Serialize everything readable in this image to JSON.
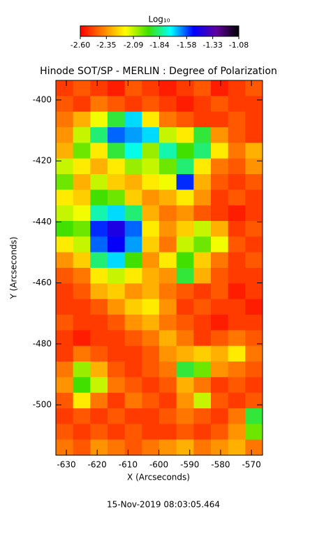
{
  "chart_data": {
    "type": "heatmap",
    "title": "Hinode SOT/SP - MERLIN : Degree of Polarization",
    "x_label": "X (Arcseconds)",
    "y_label": "Y (Arcseconds)",
    "footer": "15-Nov-2019 08:03:05.464",
    "colorbar_title": "Log₁₀",
    "colorscale": [
      "#ff0000",
      "#ff8000",
      "#ffff00",
      "#40e000",
      "#00ffff",
      "#0000ff",
      "#6000a0",
      "#000000"
    ],
    "zlim": [
      -2.6,
      -1.08
    ],
    "zticks": [
      {
        "value": -2.6,
        "label": "-2.60"
      },
      {
        "value": -2.35,
        "label": "-2.35"
      },
      {
        "value": -2.09,
        "label": "-2.09"
      },
      {
        "value": -1.84,
        "label": "-1.84"
      },
      {
        "value": -1.58,
        "label": "-1.58"
      },
      {
        "value": -1.33,
        "label": "-1.33"
      },
      {
        "value": -1.08,
        "label": "-1.08"
      }
    ],
    "xlim": [
      -633.4,
      -566.4
    ],
    "xticks": [
      -630,
      -620,
      -610,
      -600,
      -590,
      -580,
      -570
    ],
    "ylim": [
      -516.5,
      -393.6
    ],
    "yticks": [
      -400,
      -420,
      -440,
      -460,
      -480,
      -500
    ],
    "z": [
      [
        -2.5,
        -2.45,
        -2.5,
        -2.55,
        -2.45,
        -2.5,
        -2.55,
        -2.5,
        -2.45,
        -2.55,
        -2.5,
        -2.45
      ],
      [
        -2.45,
        -2.5,
        -2.4,
        -2.45,
        -2.5,
        -2.45,
        -2.5,
        -2.55,
        -2.5,
        -2.45,
        -2.5,
        -2.5
      ],
      [
        -2.4,
        -2.3,
        -2.15,
        -1.9,
        -1.7,
        -2.2,
        -2.4,
        -2.45,
        -2.5,
        -2.5,
        -2.45,
        -2.5
      ],
      [
        -2.35,
        -2.1,
        -1.85,
        -1.6,
        -1.65,
        -1.7,
        -2.1,
        -2.2,
        -1.9,
        -2.35,
        -2.45,
        -2.5
      ],
      [
        -2.3,
        -2.0,
        -2.2,
        -1.9,
        -1.75,
        -2.05,
        -1.8,
        -1.95,
        -1.85,
        -2.2,
        -2.4,
        -2.3
      ],
      [
        -2.1,
        -2.2,
        -2.3,
        -2.2,
        -2.05,
        -2.1,
        -2.0,
        -1.85,
        -2.2,
        -2.4,
        -2.45,
        -2.35
      ],
      [
        -2.0,
        -2.3,
        -2.1,
        -2.25,
        -2.3,
        -2.2,
        -2.15,
        -1.55,
        -2.3,
        -2.45,
        -2.5,
        -2.45
      ],
      [
        -2.2,
        -2.25,
        -1.95,
        -2.0,
        -2.25,
        -2.35,
        -2.3,
        -2.2,
        -2.35,
        -2.5,
        -2.45,
        -2.5
      ],
      [
        -2.1,
        -2.15,
        -1.8,
        -1.7,
        -1.85,
        -2.3,
        -2.4,
        -2.35,
        -2.45,
        -2.5,
        -2.55,
        -2.5
      ],
      [
        -1.95,
        -2.0,
        -1.55,
        -1.45,
        -1.6,
        -2.2,
        -2.35,
        -2.25,
        -2.1,
        -2.3,
        -2.5,
        -2.45
      ],
      [
        -2.2,
        -2.1,
        -1.6,
        -1.5,
        -1.65,
        -2.25,
        -2.4,
        -2.1,
        -2.0,
        -2.15,
        -2.45,
        -2.5
      ],
      [
        -2.35,
        -2.25,
        -1.85,
        -1.7,
        -1.95,
        -2.35,
        -2.2,
        -1.95,
        -2.25,
        -2.4,
        -2.5,
        -2.45
      ],
      [
        -2.45,
        -2.4,
        -2.2,
        -2.1,
        -2.2,
        -2.3,
        -2.35,
        -1.9,
        -2.3,
        -2.45,
        -2.5,
        -2.5
      ],
      [
        -2.5,
        -2.45,
        -2.3,
        -2.25,
        -2.35,
        -2.3,
        -2.4,
        -2.45,
        -2.5,
        -2.45,
        -2.55,
        -2.5
      ],
      [
        -2.5,
        -2.5,
        -2.45,
        -2.35,
        -2.25,
        -2.2,
        -2.35,
        -2.5,
        -2.45,
        -2.5,
        -2.5,
        -2.55
      ],
      [
        -2.45,
        -2.5,
        -2.5,
        -2.45,
        -2.35,
        -2.3,
        -2.4,
        -2.45,
        -2.5,
        -2.55,
        -2.5,
        -2.5
      ],
      [
        -2.5,
        -2.55,
        -2.5,
        -2.5,
        -2.45,
        -2.4,
        -2.3,
        -2.4,
        -2.5,
        -2.45,
        -2.4,
        -2.45
      ],
      [
        -2.5,
        -2.4,
        -2.45,
        -2.5,
        -2.5,
        -2.45,
        -2.35,
        -2.3,
        -2.25,
        -2.3,
        -2.2,
        -2.4
      ],
      [
        -2.4,
        -2.05,
        -2.3,
        -2.45,
        -2.5,
        -2.45,
        -2.4,
        -1.9,
        -2.0,
        -2.35,
        -2.4,
        -2.45
      ],
      [
        -2.35,
        -1.95,
        -2.1,
        -2.4,
        -2.45,
        -2.5,
        -2.45,
        -2.3,
        -2.4,
        -2.5,
        -2.45,
        -2.5
      ],
      [
        -2.45,
        -2.2,
        -2.4,
        -2.5,
        -2.4,
        -2.45,
        -2.5,
        -2.35,
        -2.1,
        -2.45,
        -2.5,
        -2.45
      ],
      [
        -2.5,
        -2.45,
        -2.5,
        -2.45,
        -2.5,
        -2.5,
        -2.45,
        -2.4,
        -2.45,
        -2.5,
        -2.4,
        -1.9
      ],
      [
        -2.45,
        -2.5,
        -2.45,
        -2.5,
        -2.45,
        -2.5,
        -2.5,
        -2.45,
        -2.5,
        -2.45,
        -2.35,
        -2.0
      ],
      [
        -2.4,
        -2.45,
        -2.35,
        -2.4,
        -2.45,
        -2.4,
        -2.35,
        -2.3,
        -2.4,
        -2.35,
        -2.3,
        -2.4
      ]
    ]
  }
}
